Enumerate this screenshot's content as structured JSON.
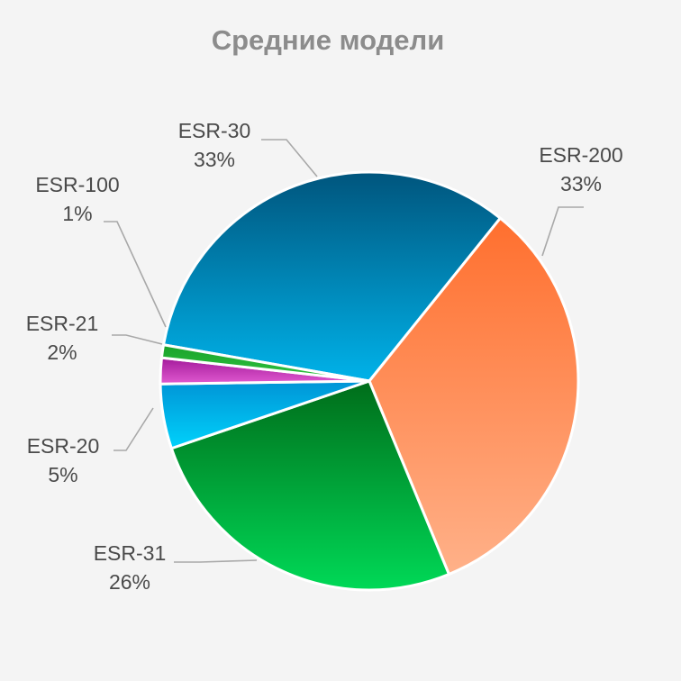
{
  "chart_data": {
    "type": "pie",
    "title": "Средние модели",
    "slices": [
      {
        "label": "ESR-30",
        "percent_label": "33%",
        "value": 33,
        "color_top": "#00557d",
        "color_bottom": "#00b2e9"
      },
      {
        "label": "ESR-200",
        "percent_label": "33%",
        "value": 33,
        "color_top": "#ff6f2e",
        "color_bottom": "#ffb189"
      },
      {
        "label": "ESR-31",
        "percent_label": "26%",
        "value": 26,
        "color_top": "#006d1a",
        "color_bottom": "#00d957"
      },
      {
        "label": "ESR-20",
        "percent_label": "5%",
        "value": 5,
        "color_top": "#0094d6",
        "color_bottom": "#00d2fb"
      },
      {
        "label": "ESR-21",
        "percent_label": "2%",
        "value": 2,
        "color_top": "#a2199a",
        "color_bottom": "#e15ad0"
      },
      {
        "label": "ESR-100",
        "percent_label": "1%",
        "value": 1,
        "color_top": "#1aa22a",
        "color_bottom": "#2fc441"
      }
    ],
    "legend": "none"
  }
}
